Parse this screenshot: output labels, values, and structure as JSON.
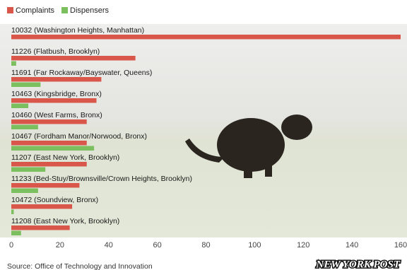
{
  "chart_data": {
    "type": "bar",
    "orientation": "horizontal",
    "categories": [
      "10032 (Washington Heights, Manhattan)",
      "11226 (Flatbush, Brooklyn)",
      "11691 (Far Rockaway/Bayswater, Queens)",
      "10463 (Kingsbridge, Bronx)",
      "10460 (West Farms, Bronx)",
      "10467 (Fordham Manor/Norwood, Bronx)",
      "11207 (East New York, Brooklyn)",
      "11233 (Bed-Stuy/Brownsville/Crown Heights, Brooklyn)",
      "10472 (Soundview, Bronx)",
      "11208 (East New York, Brooklyn)"
    ],
    "series": [
      {
        "name": "Complaints",
        "color": "#d9574a",
        "values": [
          160,
          51,
          37,
          35,
          31,
          31,
          31,
          28,
          25,
          24
        ]
      },
      {
        "name": "Dispensers",
        "color": "#7bbf5e",
        "values": [
          0,
          2,
          12,
          7,
          11,
          34,
          14,
          11,
          1,
          4
        ]
      }
    ],
    "xlim": [
      0,
      160
    ],
    "xticks": [
      0,
      20,
      40,
      60,
      80,
      100,
      120,
      140,
      160
    ],
    "legend": "top-left",
    "source": "Source: Office of Technology and Innovation",
    "logo": "NEW YORK POST"
  }
}
